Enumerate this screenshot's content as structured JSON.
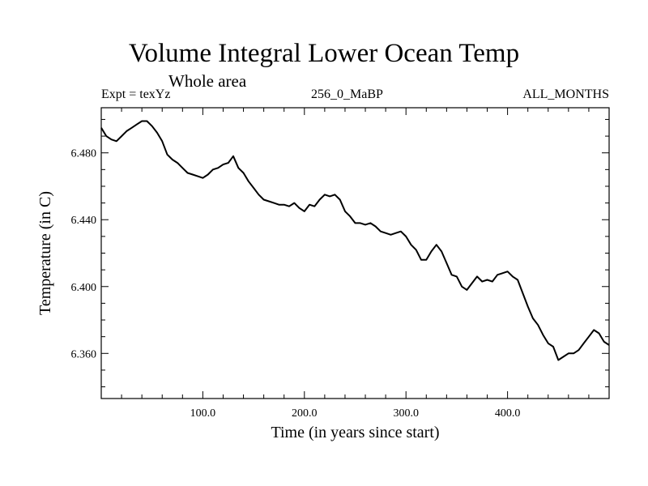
{
  "chart_data": {
    "type": "line",
    "title": "Volume Integral Lower Ocean Temp",
    "subtitle": "Whole area",
    "experiment_label": "Expt = texYz",
    "center_label": "256_0_MaBP",
    "right_label": "ALL_MONTHS",
    "xlabel": "Time (in years since start)",
    "ylabel": "Temperature (in C)",
    "xlim": [
      0,
      500
    ],
    "ylim": [
      6.333,
      6.507
    ],
    "x_ticks": [
      100,
      200,
      300,
      400
    ],
    "x_tick_labels": [
      "100.0",
      "200.0",
      "300.0",
      "400.0"
    ],
    "y_ticks": [
      6.36,
      6.4,
      6.44,
      6.48
    ],
    "y_tick_labels": [
      "6.360",
      "6.400",
      "6.440",
      "6.480"
    ],
    "grid": false,
    "series": [
      {
        "x": [
          0,
          5,
          10,
          15,
          20,
          25,
          30,
          35,
          40,
          45,
          50,
          55,
          60,
          65,
          70,
          75,
          80,
          85,
          90,
          95,
          100,
          105,
          110,
          115,
          120,
          125,
          130,
          135,
          140,
          145,
          150,
          155,
          160,
          165,
          170,
          175,
          180,
          185,
          190,
          195,
          200,
          205,
          210,
          215,
          220,
          225,
          230,
          235,
          240,
          245,
          250,
          255,
          260,
          265,
          270,
          275,
          280,
          285,
          290,
          295,
          300,
          305,
          310,
          315,
          320,
          325,
          330,
          335,
          340,
          345,
          350,
          355,
          360,
          365,
          370,
          375,
          380,
          385,
          390,
          395,
          400,
          405,
          410,
          415,
          420,
          425,
          430,
          435,
          440,
          445,
          450,
          455,
          460,
          465,
          470,
          475,
          480,
          485,
          490,
          495,
          500
        ],
        "values": [
          6.495,
          6.49,
          6.488,
          6.487,
          6.49,
          6.493,
          6.495,
          6.497,
          6.499,
          6.499,
          6.496,
          6.492,
          6.487,
          6.479,
          6.476,
          6.474,
          6.471,
          6.468,
          6.467,
          6.466,
          6.465,
          6.467,
          6.47,
          6.471,
          6.473,
          6.474,
          6.478,
          6.471,
          6.468,
          6.463,
          6.459,
          6.455,
          6.452,
          6.451,
          6.45,
          6.449,
          6.449,
          6.448,
          6.45,
          6.447,
          6.445,
          6.449,
          6.448,
          6.452,
          6.455,
          6.454,
          6.455,
          6.452,
          6.445,
          6.442,
          6.438,
          6.438,
          6.437,
          6.438,
          6.436,
          6.433,
          6.432,
          6.431,
          6.432,
          6.433,
          6.43,
          6.425,
          6.422,
          6.416,
          6.416,
          6.421,
          6.425,
          6.421,
          6.414,
          6.407,
          6.406,
          6.4,
          6.398,
          6.402,
          6.406,
          6.403,
          6.404,
          6.403,
          6.407,
          6.408,
          6.409,
          6.406,
          6.404,
          6.396,
          6.388,
          6.381,
          6.377,
          6.371,
          6.366,
          6.364,
          6.356,
          6.358,
          6.36,
          6.36,
          6.362,
          6.366,
          6.37,
          6.374,
          6.372,
          6.367,
          6.365
        ]
      }
    ]
  }
}
